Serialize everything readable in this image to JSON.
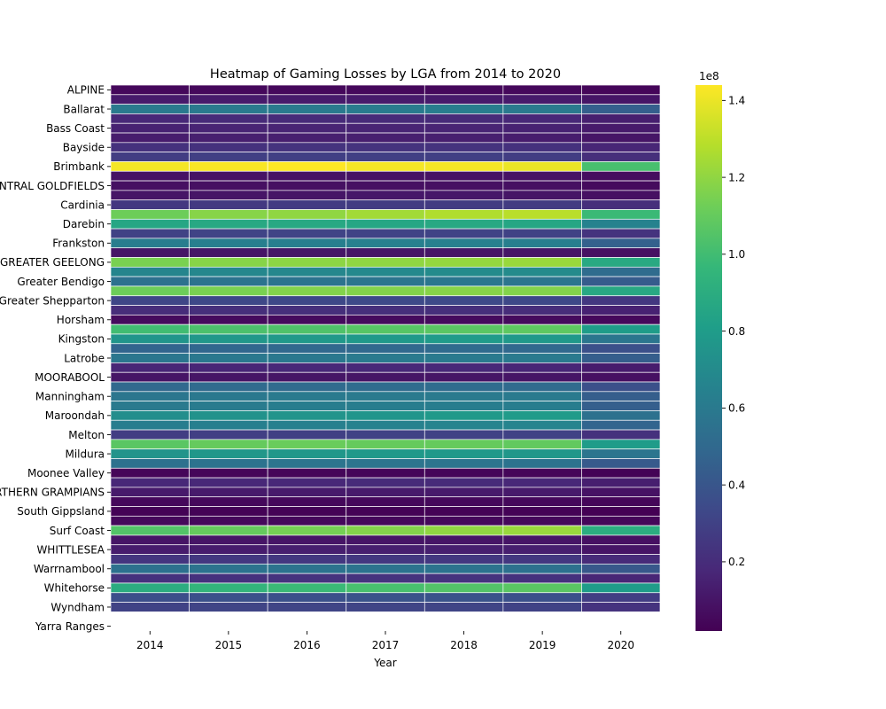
{
  "chart_data": {
    "type": "heatmap",
    "title": "Heatmap of Gaming Losses by LGA from 2014 to 2020",
    "xlabel": "Year",
    "ylabel": "",
    "x": [
      "2014",
      "2015",
      "2016",
      "2017",
      "2018",
      "2019",
      "2020"
    ],
    "y": [
      "ALPINE",
      "",
      "Ballarat",
      "",
      "Bass Coast",
      "",
      "Bayside",
      "",
      "Brimbank",
      "",
      "CENTRAL GOLDFIELDS",
      "",
      "Cardinia",
      "",
      "Darebin",
      "",
      "Frankston",
      "",
      "GREATER GEELONG",
      "",
      "Greater Bendigo",
      "",
      "Greater Shepparton",
      "",
      "Horsham",
      "",
      "Kingston",
      "",
      "Latrobe",
      "",
      "MOORABOOL",
      "",
      "Manningham",
      "",
      "Maroondah",
      "",
      "Melton",
      "",
      "Mildura",
      "",
      "Moonee Valley",
      "",
      "NORTHERN GRAMPIANS",
      "",
      "South Gippsland",
      "",
      "Surf Coast",
      "",
      "WHITTLESEA",
      "",
      "Warrnambool",
      "",
      "Whitehorse",
      "",
      "Wyndham",
      "",
      "Yarra Ranges"
    ],
    "values_unit_scale": "1e8",
    "values": [
      [
        0.05,
        0.05,
        0.05,
        0.05,
        0.05,
        0.05,
        0.04
      ],
      [
        0.12,
        0.12,
        0.12,
        0.12,
        0.12,
        0.12,
        0.1
      ],
      [
        0.6,
        0.6,
        0.6,
        0.61,
        0.62,
        0.6,
        0.45
      ],
      [
        0.18,
        0.19,
        0.19,
        0.19,
        0.19,
        0.18,
        0.14
      ],
      [
        0.15,
        0.16,
        0.16,
        0.16,
        0.16,
        0.15,
        0.12
      ],
      [
        0.13,
        0.14,
        0.14,
        0.14,
        0.14,
        0.13,
        0.1
      ],
      [
        0.22,
        0.22,
        0.23,
        0.23,
        0.23,
        0.22,
        0.17
      ],
      [
        0.28,
        0.29,
        0.29,
        0.29,
        0.29,
        0.28,
        0.21
      ],
      [
        1.42,
        1.43,
        1.44,
        1.42,
        1.42,
        1.4,
        1.02
      ],
      [
        0.09,
        0.09,
        0.09,
        0.09,
        0.09,
        0.09,
        0.07
      ],
      [
        0.08,
        0.08,
        0.08,
        0.08,
        0.08,
        0.08,
        0.06
      ],
      [
        0.1,
        0.1,
        0.1,
        0.11,
        0.11,
        0.1,
        0.08
      ],
      [
        0.25,
        0.26,
        0.27,
        0.27,
        0.27,
        0.27,
        0.21
      ],
      [
        1.12,
        1.18,
        1.2,
        1.24,
        1.27,
        1.29,
        0.98
      ],
      [
        0.86,
        0.87,
        0.87,
        0.86,
        0.87,
        0.86,
        0.65
      ],
      [
        0.3,
        0.31,
        0.31,
        0.31,
        0.31,
        0.3,
        0.23
      ],
      [
        0.62,
        0.63,
        0.63,
        0.64,
        0.64,
        0.63,
        0.46
      ],
      [
        0.1,
        0.1,
        0.1,
        0.1,
        0.1,
        0.1,
        0.08
      ],
      [
        1.15,
        1.18,
        1.19,
        1.2,
        1.21,
        1.22,
        0.88
      ],
      [
        0.67,
        0.68,
        0.68,
        0.69,
        0.7,
        0.7,
        0.52
      ],
      [
        0.55,
        0.56,
        0.56,
        0.57,
        0.58,
        0.57,
        0.43
      ],
      [
        1.12,
        1.15,
        1.17,
        1.17,
        1.18,
        1.17,
        0.87
      ],
      [
        0.32,
        0.33,
        0.33,
        0.34,
        0.34,
        0.33,
        0.25
      ],
      [
        0.2,
        0.21,
        0.21,
        0.21,
        0.21,
        0.2,
        0.15
      ],
      [
        0.06,
        0.06,
        0.06,
        0.06,
        0.06,
        0.06,
        0.05
      ],
      [
        1.0,
        1.03,
        1.04,
        1.06,
        1.07,
        1.08,
        0.8
      ],
      [
        0.76,
        0.77,
        0.78,
        0.78,
        0.79,
        0.78,
        0.58
      ],
      [
        0.48,
        0.49,
        0.5,
        0.5,
        0.51,
        0.5,
        0.37
      ],
      [
        0.58,
        0.59,
        0.59,
        0.6,
        0.6,
        0.6,
        0.44
      ],
      [
        0.17,
        0.17,
        0.18,
        0.18,
        0.18,
        0.17,
        0.13
      ],
      [
        0.1,
        0.1,
        0.1,
        0.1,
        0.1,
        0.1,
        0.08
      ],
      [
        0.5,
        0.51,
        0.51,
        0.52,
        0.52,
        0.51,
        0.37
      ],
      [
        0.58,
        0.59,
        0.6,
        0.6,
        0.6,
        0.6,
        0.44
      ],
      [
        0.6,
        0.61,
        0.62,
        0.62,
        0.62,
        0.62,
        0.45
      ],
      [
        0.72,
        0.74,
        0.75,
        0.76,
        0.78,
        0.79,
        0.55
      ],
      [
        0.62,
        0.63,
        0.64,
        0.65,
        0.66,
        0.66,
        0.48
      ],
      [
        0.28,
        0.29,
        0.29,
        0.3,
        0.3,
        0.3,
        0.22
      ],
      [
        1.07,
        1.1,
        1.11,
        1.1,
        1.1,
        1.09,
        0.8
      ],
      [
        0.75,
        0.77,
        0.77,
        0.78,
        0.78,
        0.77,
        0.57
      ],
      [
        0.55,
        0.56,
        0.57,
        0.57,
        0.57,
        0.56,
        0.42
      ],
      [
        0.04,
        0.04,
        0.04,
        0.04,
        0.04,
        0.04,
        0.03
      ],
      [
        0.18,
        0.18,
        0.18,
        0.19,
        0.19,
        0.18,
        0.14
      ],
      [
        0.12,
        0.12,
        0.12,
        0.12,
        0.12,
        0.12,
        0.09
      ],
      [
        0.05,
        0.05,
        0.05,
        0.05,
        0.05,
        0.05,
        0.04
      ],
      [
        0.03,
        0.03,
        0.03,
        0.03,
        0.03,
        0.03,
        0.02
      ],
      [
        0.05,
        0.05,
        0.05,
        0.05,
        0.05,
        0.05,
        0.04
      ],
      [
        1.05,
        1.1,
        1.14,
        1.17,
        1.2,
        1.22,
        0.9
      ],
      [
        0.1,
        0.1,
        0.1,
        0.1,
        0.1,
        0.1,
        0.08
      ],
      [
        0.13,
        0.13,
        0.14,
        0.14,
        0.14,
        0.14,
        0.1
      ],
      [
        0.24,
        0.25,
        0.25,
        0.25,
        0.25,
        0.25,
        0.19
      ],
      [
        0.55,
        0.56,
        0.56,
        0.56,
        0.56,
        0.55,
        0.41
      ],
      [
        0.22,
        0.22,
        0.23,
        0.23,
        0.23,
        0.22,
        0.17
      ],
      [
        0.9,
        0.95,
        0.98,
        1.02,
        1.05,
        1.07,
        0.8
      ],
      [
        0.36,
        0.37,
        0.37,
        0.38,
        0.38,
        0.37,
        0.28
      ],
      [
        0.3,
        0.31,
        0.31,
        0.31,
        0.31,
        0.3,
        0.23
      ]
    ],
    "colorbar": {
      "label": "1e8",
      "ticks": [
        "0.2",
        "0.4",
        "0.6",
        "0.8",
        "1.0",
        "1.2",
        "1.4"
      ],
      "range": [
        0.02,
        1.44
      ]
    },
    "colormap": "viridis",
    "grid": false,
    "cell_border_color": "#ffffff"
  }
}
